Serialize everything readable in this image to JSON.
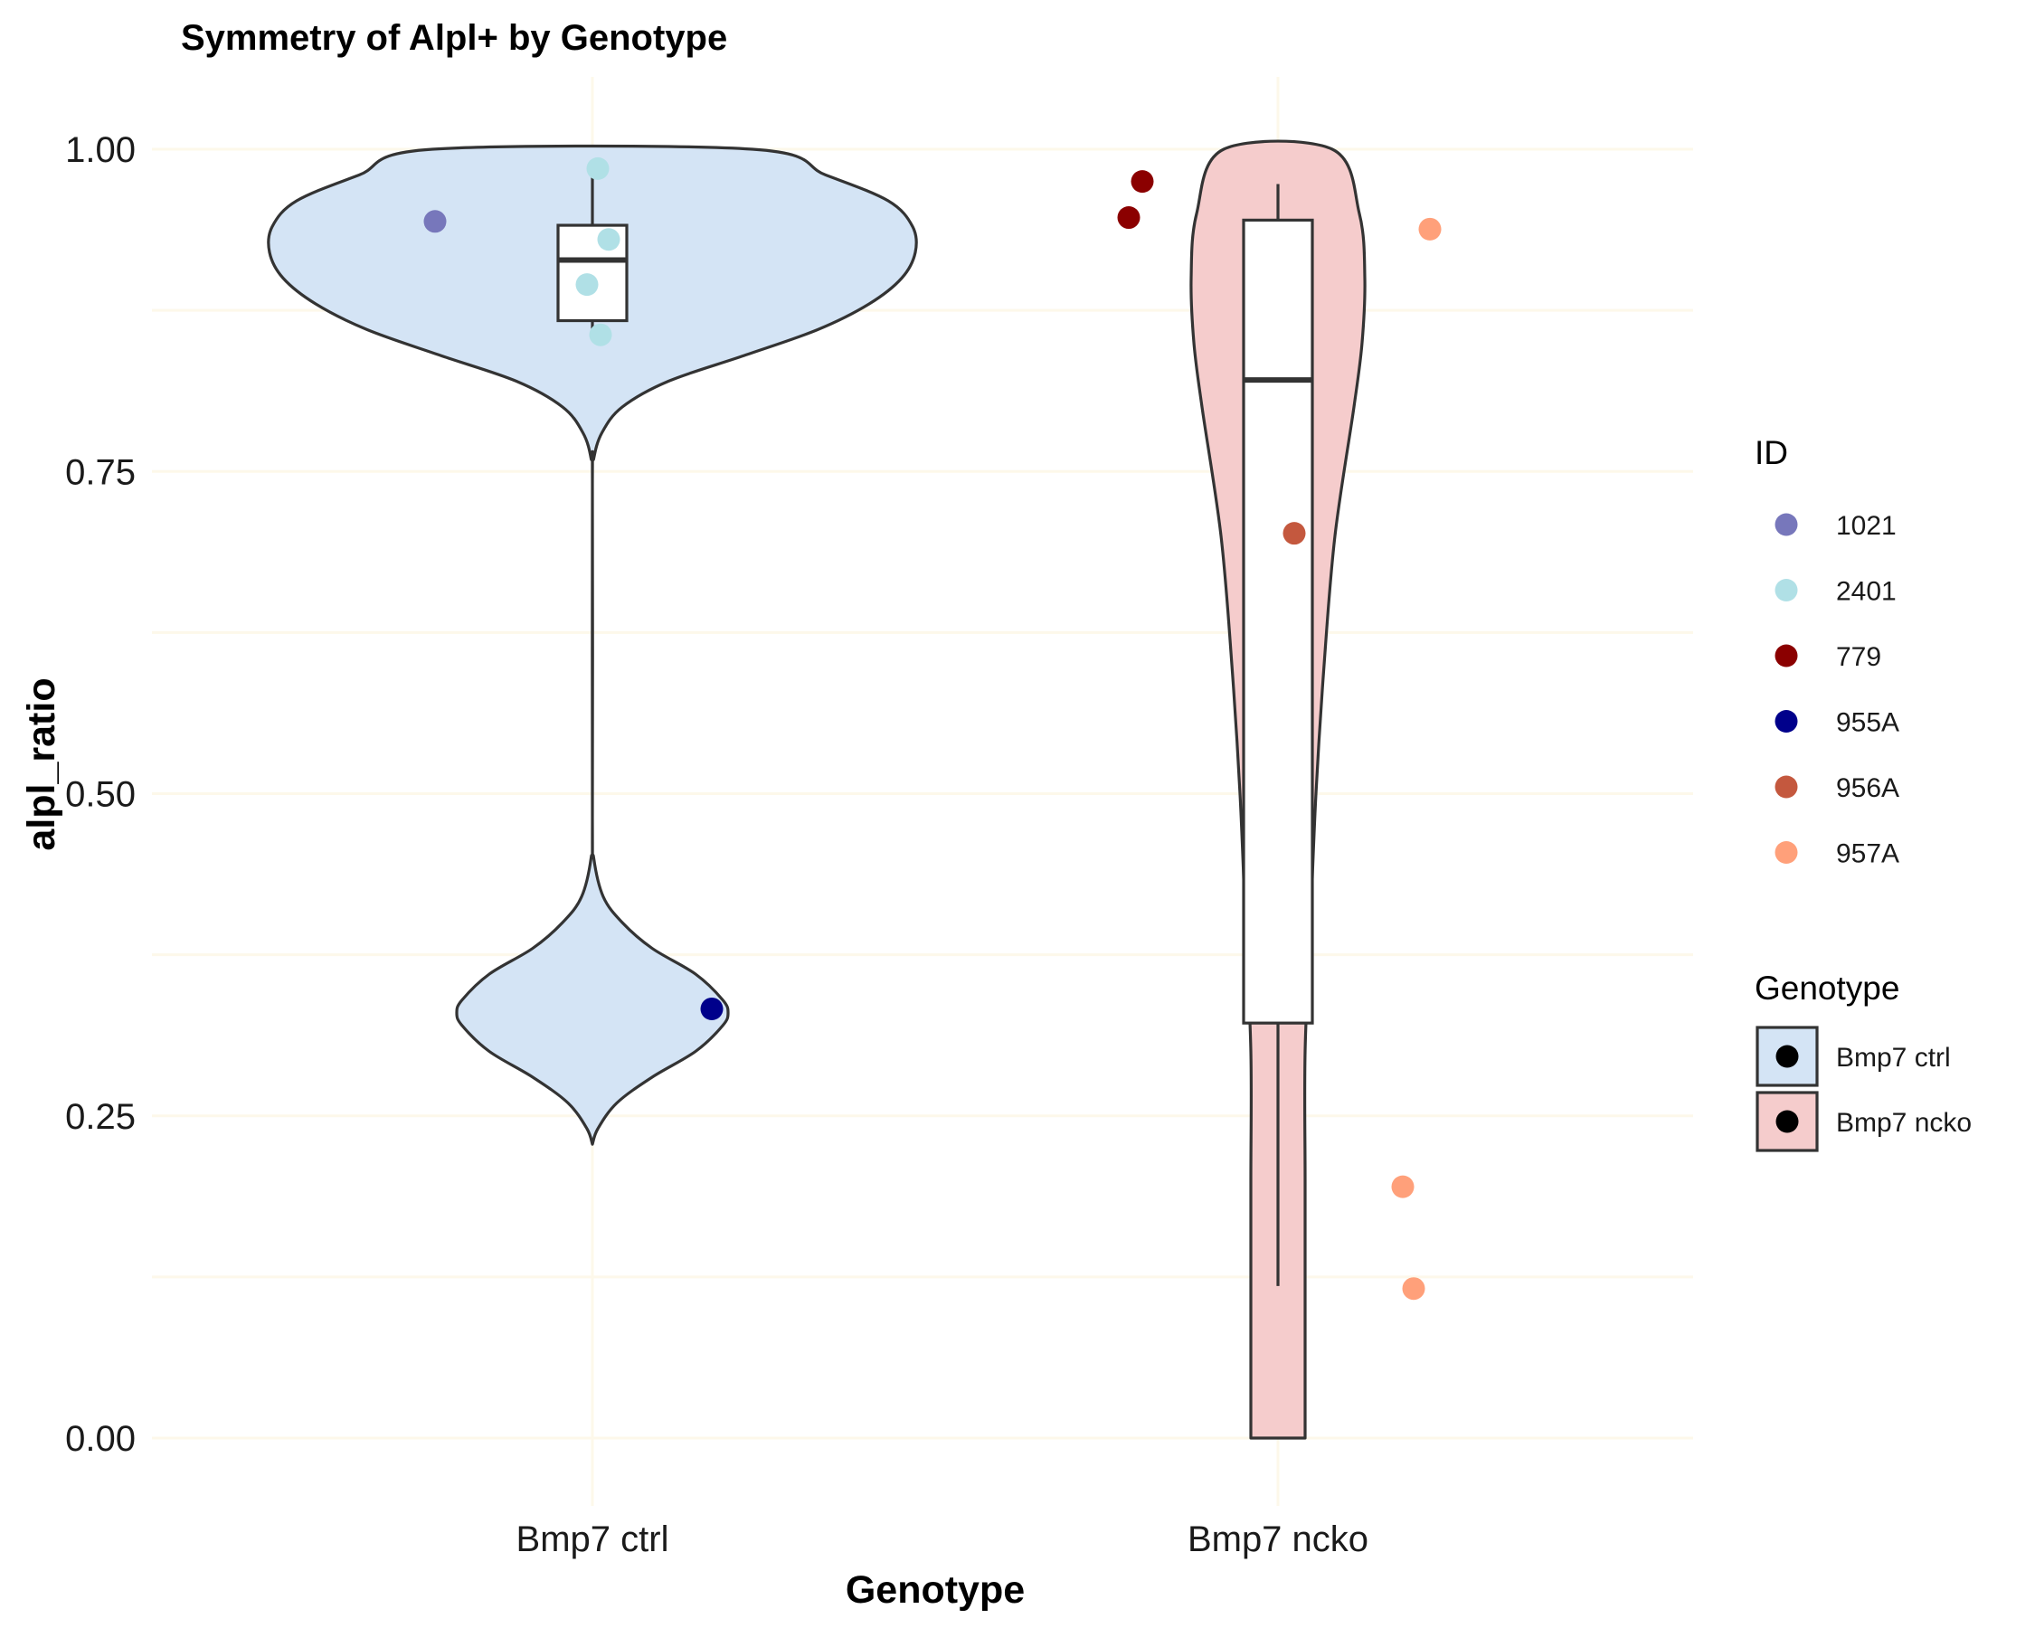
{
  "chart_data": {
    "type": "violin",
    "title": "Symmetry of Alpl+ by Genotype",
    "xlabel": "Genotype",
    "ylabel": "alpl_ratio",
    "categories": [
      "Bmp7 ctrl",
      "Bmp7 ncko"
    ],
    "ylim": [
      -0.05,
      1.05
    ],
    "yticks": [
      0.0,
      0.25,
      0.5,
      0.75,
      1.0
    ],
    "ytick_labels": [
      "0.00",
      "0.25",
      "0.50",
      "0.75",
      "1.00"
    ],
    "grid": true,
    "grid_color": "#fdf8ea",
    "violins": [
      {
        "category": "Bmp7 ctrl",
        "fill": "#d4e4f5",
        "profile": [
          [
            0.228,
            0.0
          ],
          [
            0.24,
            0.02
          ],
          [
            0.26,
            0.09
          ],
          [
            0.28,
            0.22
          ],
          [
            0.3,
            0.38
          ],
          [
            0.32,
            0.48
          ],
          [
            0.33,
            0.5
          ],
          [
            0.34,
            0.48
          ],
          [
            0.36,
            0.38
          ],
          [
            0.38,
            0.22
          ],
          [
            0.4,
            0.11
          ],
          [
            0.42,
            0.04
          ],
          [
            0.45,
            0.005
          ],
          [
            0.48,
            0.0
          ],
          [
            0.74,
            0.0
          ],
          [
            0.76,
            0.005
          ],
          [
            0.78,
            0.035
          ],
          [
            0.8,
            0.11
          ],
          [
            0.82,
            0.28
          ],
          [
            0.84,
            0.56
          ],
          [
            0.86,
            0.83
          ],
          [
            0.88,
            1.02
          ],
          [
            0.9,
            1.14
          ],
          [
            0.92,
            1.19
          ],
          [
            0.94,
            1.18
          ],
          [
            0.96,
            1.09
          ],
          [
            0.98,
            0.86
          ],
          [
            1.0,
            0.59
          ]
        ]
      },
      {
        "category": "Bmp7 ncko",
        "fill": "#f5cccc",
        "profile": [
          [
            0.0,
            0.1
          ],
          [
            0.1,
            0.1
          ],
          [
            0.2,
            0.1
          ],
          [
            0.3,
            0.1
          ],
          [
            0.4,
            0.12
          ],
          [
            0.5,
            0.14
          ],
          [
            0.6,
            0.17
          ],
          [
            0.7,
            0.21
          ],
          [
            0.8,
            0.28
          ],
          [
            0.85,
            0.31
          ],
          [
            0.9,
            0.32
          ],
          [
            0.95,
            0.3
          ],
          [
            1.0,
            0.2
          ]
        ]
      }
    ],
    "boxplots": [
      {
        "category": "Bmp7 ctrl",
        "min": 0.855,
        "q1": 0.867,
        "median": 0.914,
        "q3": 0.941,
        "max": 0.985
      },
      {
        "category": "Bmp7 ncko",
        "min": 0.118,
        "q1": 0.322,
        "median": 0.821,
        "q3": 0.945,
        "max": 0.973
      }
    ],
    "points": [
      {
        "category": "Bmp7 ctrl",
        "jitter": -0.58,
        "y": 0.944,
        "id": "1021"
      },
      {
        "category": "Bmp7 ctrl",
        "jitter": 0.02,
        "y": 0.985,
        "id": "2401"
      },
      {
        "category": "Bmp7 ctrl",
        "jitter": 0.06,
        "y": 0.93,
        "id": "2401"
      },
      {
        "category": "Bmp7 ctrl",
        "jitter": -0.02,
        "y": 0.895,
        "id": "2401"
      },
      {
        "category": "Bmp7 ctrl",
        "jitter": 0.03,
        "y": 0.856,
        "id": "2401"
      },
      {
        "category": "Bmp7 ctrl",
        "jitter": 0.44,
        "y": 0.333,
        "id": "955A"
      },
      {
        "category": "Bmp7 ncko",
        "jitter": -0.55,
        "y": 0.947,
        "id": "779"
      },
      {
        "category": "Bmp7 ncko",
        "jitter": -0.5,
        "y": 0.975,
        "id": "779"
      },
      {
        "category": "Bmp7 ncko",
        "jitter": 0.06,
        "y": 0.702,
        "id": "956A"
      },
      {
        "category": "Bmp7 ncko",
        "jitter": 0.56,
        "y": 0.938,
        "id": "957A"
      },
      {
        "category": "Bmp7 ncko",
        "jitter": 0.46,
        "y": 0.195,
        "id": "957A"
      },
      {
        "category": "Bmp7 ncko",
        "jitter": 0.5,
        "y": 0.116,
        "id": "957A"
      }
    ],
    "legend_id": {
      "title": "ID",
      "entries": [
        {
          "label": "1021",
          "color": "#7777bb"
        },
        {
          "label": "2401",
          "color": "#b0e0e6"
        },
        {
          "label": "779",
          "color": "#8b0000"
        },
        {
          "label": "955A",
          "color": "#00008b"
        },
        {
          "label": "956A",
          "color": "#c4583e"
        },
        {
          "label": "957A",
          "color": "#ffa07a"
        }
      ]
    },
    "legend_genotype": {
      "title": "Genotype",
      "entries": [
        {
          "label": "Bmp7 ctrl",
          "fill": "#d4e4f5"
        },
        {
          "label": "Bmp7 ncko",
          "fill": "#f5cccc"
        }
      ]
    },
    "legend_placement": "right"
  }
}
